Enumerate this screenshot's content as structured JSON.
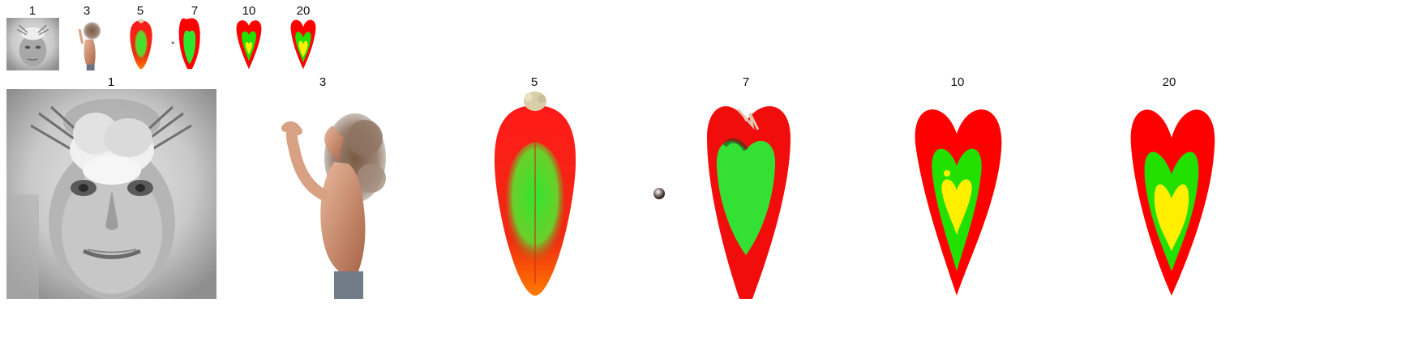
{
  "thumbnails": [
    {
      "label": "1"
    },
    {
      "label": "3"
    },
    {
      "label": "5"
    },
    {
      "label": "7"
    },
    {
      "label": "10"
    },
    {
      "label": "20"
    }
  ],
  "large_images": [
    {
      "label": "1"
    },
    {
      "label": "3"
    },
    {
      "label": "5"
    },
    {
      "label": "7"
    },
    {
      "label": "10"
    },
    {
      "label": "20"
    }
  ],
  "colors": {
    "heart_red": "#ff0000",
    "heart_green": "#22e000",
    "heart_yellow": "#ffee00",
    "portrait_gray": "#c8c8c8"
  }
}
